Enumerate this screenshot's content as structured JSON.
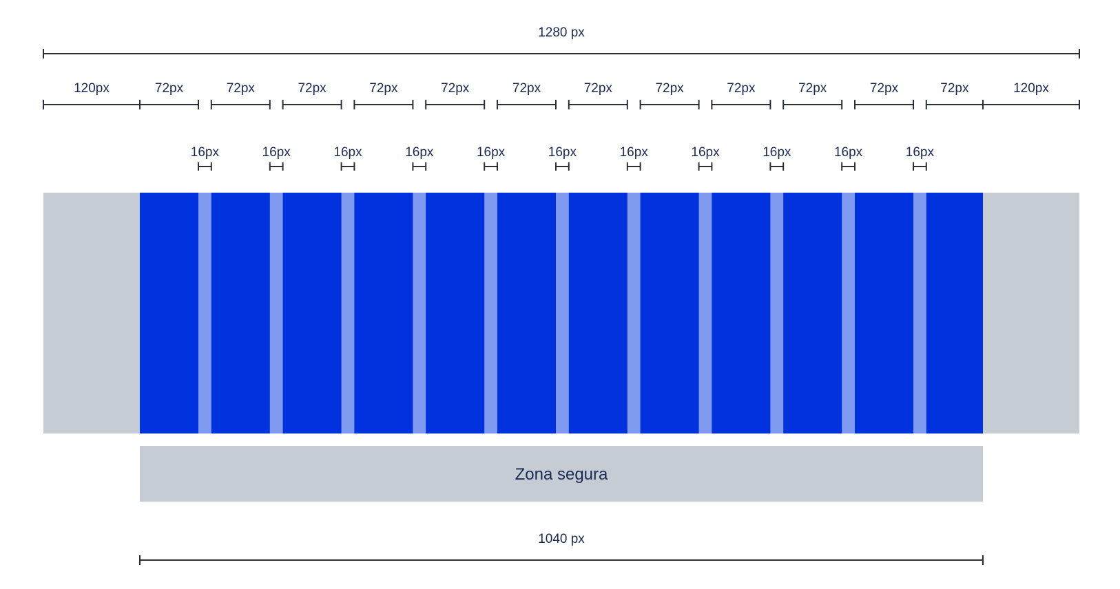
{
  "total_width": {
    "label": "1280 px"
  },
  "columns_row": {
    "labels": [
      "120px",
      "72px",
      "72px",
      "72px",
      "72px",
      "72px",
      "72px",
      "72px",
      "72px",
      "72px",
      "72px",
      "72px",
      "72px",
      "120px"
    ]
  },
  "gutters_row": {
    "labels": [
      "16px",
      "16px",
      "16px",
      "16px",
      "16px",
      "16px",
      "16px",
      "16px",
      "16px",
      "16px",
      "16px"
    ]
  },
  "grid": {
    "margin_color": "#c5ccd4",
    "column_color": "#0033dd",
    "gutter_color": "#7f9aee",
    "column_count": 12
  },
  "safe_zone": {
    "label": "Zona segura",
    "color": "#c5ccd4"
  },
  "content_width": {
    "label": "1040 px"
  }
}
